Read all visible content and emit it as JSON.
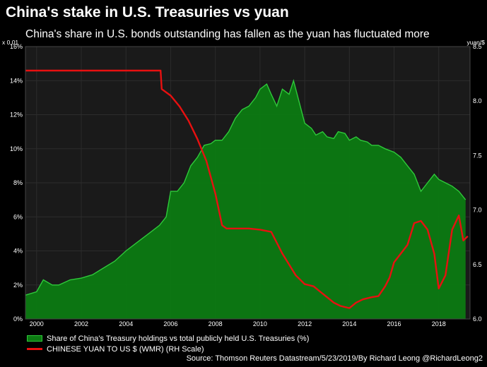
{
  "title": "China's stake in U.S. Treasuries vs yuan",
  "subtitle": "China's share in U.S. bonds outstanding has fallen as the yuan has fluctuated more",
  "source": "Source: Thomson Reuters Datastream/5/23/2019/By Richard Leong @RichardLeong2",
  "colors": {
    "background": "#000000",
    "plot_background": "#1a1a1a",
    "grid": "#2c2c2c",
    "area_fill": "#0c7a12",
    "area_line": "#2ec93a",
    "yuan_line": "#e81010"
  },
  "chart_data": {
    "type": "area",
    "left_axis": {
      "label": "x 0.01",
      "range": [
        0,
        16
      ],
      "ticks": [
        0,
        2,
        4,
        6,
        8,
        10,
        12,
        14,
        16
      ],
      "tick_labels": [
        "0%",
        "2%",
        "4%",
        "6%",
        "8%",
        "10%",
        "12%",
        "14%",
        "16%"
      ]
    },
    "right_axis": {
      "label": "yuan/$",
      "range": [
        6.0,
        8.5
      ],
      "ticks": [
        6.0,
        6.5,
        7.0,
        7.5,
        8.0,
        8.5
      ],
      "tick_labels": [
        "6.0",
        "6.5",
        "7.0",
        "7.5",
        "8.0",
        "8.5"
      ]
    },
    "x_axis": {
      "range": [
        1999.5,
        2019.4
      ],
      "ticks": [
        2000,
        2002,
        2004,
        2006,
        2008,
        2010,
        2012,
        2014,
        2016,
        2018
      ],
      "tick_labels": [
        "2000",
        "2002",
        "2004",
        "2006",
        "2008",
        "2010",
        "2012",
        "2014",
        "2016",
        "2018"
      ]
    },
    "grid": true,
    "legend_position": "bottom-left",
    "series": [
      {
        "name": "Share of China's Treasury holdings vs total publicly held U.S. Treasuries (%)",
        "axis": "left",
        "style": "area",
        "x": [
          1999.5,
          2000.0,
          2000.3,
          2000.7,
          2001.0,
          2001.5,
          2002.0,
          2002.5,
          2003.0,
          2003.5,
          2004.0,
          2004.5,
          2005.0,
          2005.5,
          2005.8,
          2006.0,
          2006.3,
          2006.6,
          2006.9,
          2007.2,
          2007.5,
          2007.8,
          2008.0,
          2008.3,
          2008.6,
          2008.9,
          2009.2,
          2009.5,
          2009.8,
          2010.0,
          2010.3,
          2010.5,
          2010.75,
          2011.0,
          2011.3,
          2011.5,
          2011.8,
          2012.0,
          2012.3,
          2012.5,
          2012.8,
          2013.0,
          2013.3,
          2013.5,
          2013.8,
          2014.0,
          2014.3,
          2014.5,
          2014.8,
          2015.0,
          2015.3,
          2015.6,
          2016.0,
          2016.3,
          2016.6,
          2016.9,
          2017.2,
          2017.5,
          2017.8,
          2018.0,
          2018.3,
          2018.6,
          2018.9,
          2019.2
        ],
        "values": [
          1.4,
          1.6,
          2.3,
          2.0,
          2.0,
          2.3,
          2.4,
          2.6,
          3.0,
          3.4,
          4.0,
          4.5,
          5.0,
          5.5,
          6.0,
          7.5,
          7.5,
          8.0,
          9.0,
          9.5,
          10.2,
          10.3,
          10.5,
          10.5,
          11.0,
          11.8,
          12.3,
          12.5,
          13.0,
          13.5,
          13.8,
          13.2,
          12.5,
          13.5,
          13.2,
          14.0,
          12.5,
          11.5,
          11.2,
          10.8,
          11.0,
          10.7,
          10.6,
          11.0,
          10.9,
          10.5,
          10.7,
          10.5,
          10.4,
          10.2,
          10.2,
          10.0,
          9.8,
          9.5,
          9.0,
          8.5,
          7.5,
          8.0,
          8.5,
          8.2,
          8.0,
          7.8,
          7.5,
          7.0
        ]
      },
      {
        "name": "CHINESE YUAN TO US $ (WMR) (RH Scale)",
        "axis": "right",
        "style": "line",
        "x": [
          1999.5,
          2000.0,
          2002.0,
          2005.0,
          2005.55,
          2005.6,
          2006.0,
          2006.4,
          2006.8,
          2007.2,
          2007.6,
          2008.0,
          2008.3,
          2008.5,
          2009.0,
          2009.5,
          2010.0,
          2010.5,
          2010.8,
          2011.0,
          2011.3,
          2011.6,
          2012.0,
          2012.4,
          2012.7,
          2013.0,
          2013.3,
          2013.6,
          2014.0,
          2014.3,
          2014.6,
          2015.0,
          2015.3,
          2015.6,
          2015.8,
          2016.0,
          2016.3,
          2016.6,
          2016.9,
          2017.2,
          2017.5,
          2017.8,
          2018.0,
          2018.3,
          2018.6,
          2018.9,
          2019.1,
          2019.3
        ],
        "values": [
          8.28,
          8.28,
          8.28,
          8.28,
          8.28,
          8.11,
          8.05,
          7.95,
          7.82,
          7.65,
          7.45,
          7.15,
          6.86,
          6.83,
          6.83,
          6.83,
          6.82,
          6.8,
          6.68,
          6.6,
          6.5,
          6.4,
          6.32,
          6.3,
          6.25,
          6.2,
          6.15,
          6.12,
          6.1,
          6.15,
          6.18,
          6.2,
          6.21,
          6.3,
          6.38,
          6.52,
          6.6,
          6.68,
          6.88,
          6.9,
          6.82,
          6.6,
          6.28,
          6.4,
          6.82,
          6.95,
          6.72,
          6.76
        ]
      }
    ]
  }
}
